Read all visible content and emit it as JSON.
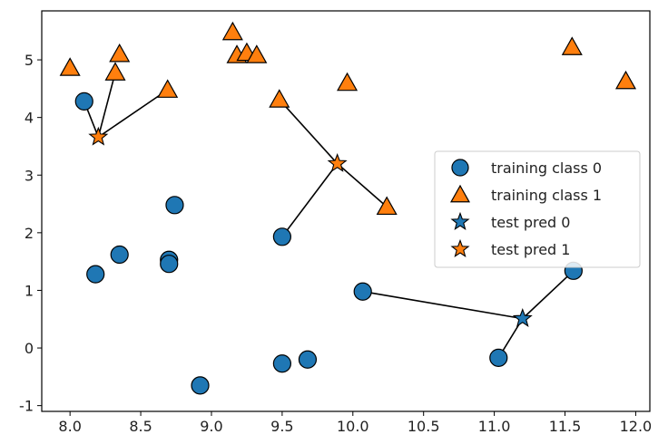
{
  "chart_data": {
    "type": "scatter",
    "title": "",
    "xlabel": "",
    "ylabel": "",
    "xlim": [
      7.8,
      12.1
    ],
    "ylim": [
      -1.1,
      5.85
    ],
    "grid": false,
    "legend_position": "center-right",
    "x_ticks": [
      "8.0",
      "8.5",
      "9.0",
      "9.5",
      "10.0",
      "10.5",
      "11.0",
      "11.5",
      "12.0"
    ],
    "x_tick_values": [
      8.0,
      8.5,
      9.0,
      9.5,
      10.0,
      10.5,
      11.0,
      11.5,
      12.0
    ],
    "y_ticks": [
      "-1",
      "0",
      "1",
      "2",
      "3",
      "4",
      "5"
    ],
    "y_tick_values": [
      -1,
      0,
      1,
      2,
      3,
      4,
      5
    ],
    "colors": {
      "class0": "#1f77b4",
      "class1": "#ff7f0e",
      "edge": "#000000"
    },
    "series": [
      {
        "name": "training class 0",
        "marker": "circle",
        "color": "#1f77b4",
        "points": [
          [
            8.1,
            4.28
          ],
          [
            8.18,
            1.28
          ],
          [
            8.35,
            1.62
          ],
          [
            8.7,
            1.53
          ],
          [
            8.7,
            1.46
          ],
          [
            8.74,
            2.48
          ],
          [
            8.92,
            -0.65
          ],
          [
            9.5,
            1.93
          ],
          [
            9.5,
            -0.27
          ],
          [
            9.68,
            -0.2
          ],
          [
            10.07,
            0.98
          ],
          [
            11.03,
            -0.17
          ],
          [
            11.56,
            1.34
          ]
        ]
      },
      {
        "name": "training class 1",
        "marker": "triangle",
        "color": "#ff7f0e",
        "points": [
          [
            8.0,
            4.86
          ],
          [
            8.32,
            4.78
          ],
          [
            8.35,
            5.1
          ],
          [
            8.69,
            4.48
          ],
          [
            9.15,
            5.48
          ],
          [
            9.18,
            5.08
          ],
          [
            9.25,
            5.12
          ],
          [
            9.32,
            5.08
          ],
          [
            9.48,
            4.31
          ],
          [
            9.96,
            4.6
          ],
          [
            10.24,
            2.45
          ],
          [
            11.55,
            5.22
          ],
          [
            11.93,
            4.63
          ]
        ]
      },
      {
        "name": "test pred 0",
        "marker": "star",
        "color": "#1f77b4",
        "points": [
          [
            11.2,
            0.51
          ]
        ]
      },
      {
        "name": "test pred 1",
        "marker": "star",
        "color": "#ff7f0e",
        "points": [
          [
            8.2,
            3.66
          ],
          [
            9.89,
            3.2
          ]
        ]
      }
    ],
    "neighbor_lines": [
      {
        "from": [
          8.2,
          3.66
        ],
        "to": [
          8.1,
          4.28
        ]
      },
      {
        "from": [
          8.2,
          3.66
        ],
        "to": [
          8.32,
          4.78
        ]
      },
      {
        "from": [
          8.2,
          3.66
        ],
        "to": [
          8.69,
          4.48
        ]
      },
      {
        "from": [
          9.89,
          3.2
        ],
        "to": [
          9.5,
          1.93
        ]
      },
      {
        "from": [
          9.89,
          3.2
        ],
        "to": [
          9.48,
          4.31
        ]
      },
      {
        "from": [
          9.89,
          3.2
        ],
        "to": [
          10.24,
          2.45
        ]
      },
      {
        "from": [
          11.2,
          0.51
        ],
        "to": [
          10.07,
          0.98
        ]
      },
      {
        "from": [
          11.2,
          0.51
        ],
        "to": [
          11.03,
          -0.17
        ]
      },
      {
        "from": [
          11.2,
          0.51
        ],
        "to": [
          11.56,
          1.34
        ]
      }
    ],
    "legend": [
      {
        "label": "training class 0",
        "marker": "circle",
        "color": "#1f77b4"
      },
      {
        "label": "training class 1",
        "marker": "triangle",
        "color": "#ff7f0e"
      },
      {
        "label": "test pred 0",
        "marker": "star",
        "color": "#1f77b4"
      },
      {
        "label": "test pred 1",
        "marker": "star",
        "color": "#ff7f0e"
      }
    ]
  }
}
